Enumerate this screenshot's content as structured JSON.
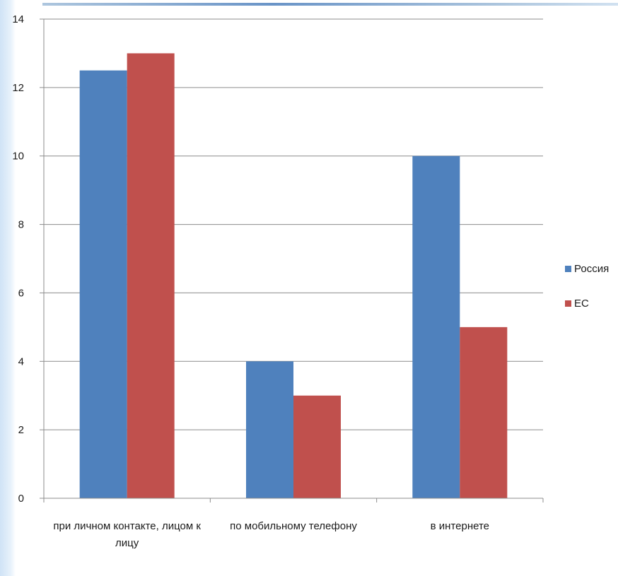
{
  "chart_data": {
    "type": "bar",
    "title": "",
    "xlabel": "",
    "ylabel": "",
    "categories": [
      [
        "при личном контакте, лицом к",
        "лицу"
      ],
      [
        "по мобильному телефону"
      ],
      [
        "в интернете"
      ]
    ],
    "series": [
      {
        "name": "Россия",
        "values": [
          12.5,
          4,
          10
        ],
        "color": "#4f81bd"
      },
      {
        "name": "ЕС",
        "values": [
          13,
          3,
          5
        ],
        "color": "#c0504d"
      }
    ],
    "ylim": [
      0,
      14
    ],
    "yticks": [
      0,
      2,
      4,
      6,
      8,
      10,
      12,
      14
    ],
    "grid": true,
    "legend_position": "right"
  }
}
